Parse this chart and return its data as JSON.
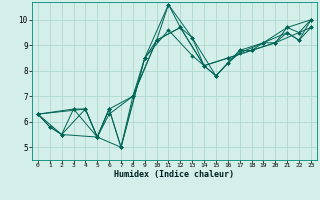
{
  "xlabel": "Humidex (Indice chaleur)",
  "xlim": [
    -0.5,
    23.5
  ],
  "ylim": [
    4.5,
    10.7
  ],
  "xticks": [
    0,
    1,
    2,
    3,
    4,
    5,
    6,
    7,
    8,
    9,
    10,
    11,
    12,
    13,
    14,
    15,
    16,
    17,
    18,
    19,
    20,
    21,
    22,
    23
  ],
  "yticks": [
    5,
    6,
    7,
    8,
    9,
    10
  ],
  "bg_color": "#d4eeea",
  "line_color": "#006655",
  "grid_color": "#aad4cc",
  "lines": [
    {
      "x": [
        0,
        1,
        2,
        3,
        4,
        5,
        6,
        7,
        8,
        9,
        10,
        11,
        12,
        13,
        14,
        15,
        16,
        17,
        18,
        19,
        20,
        21,
        22,
        23
      ],
      "y": [
        6.3,
        5.8,
        5.5,
        6.5,
        6.5,
        5.4,
        6.5,
        5.0,
        7.0,
        8.5,
        9.2,
        10.6,
        9.7,
        9.3,
        8.2,
        7.8,
        8.3,
        8.8,
        8.8,
        9.1,
        9.1,
        9.5,
        9.2,
        10.0
      ]
    },
    {
      "x": [
        0,
        2,
        4,
        5,
        6,
        8,
        10,
        12,
        14,
        16,
        18,
        20,
        22,
        23
      ],
      "y": [
        6.3,
        5.5,
        6.5,
        5.4,
        6.5,
        7.0,
        9.2,
        9.7,
        8.2,
        8.5,
        8.8,
        9.1,
        9.5,
        9.7
      ]
    },
    {
      "x": [
        0,
        3,
        5,
        6,
        8,
        10,
        12,
        14,
        16,
        18,
        20,
        21,
        23
      ],
      "y": [
        6.3,
        6.5,
        5.4,
        6.3,
        7.0,
        9.2,
        9.7,
        8.2,
        8.5,
        8.8,
        9.1,
        9.7,
        10.0
      ]
    },
    {
      "x": [
        0,
        4,
        5,
        6,
        7,
        9,
        11,
        13,
        15,
        17,
        19,
        21,
        22,
        23
      ],
      "y": [
        6.3,
        6.5,
        5.4,
        6.5,
        5.0,
        8.5,
        10.6,
        9.3,
        7.8,
        8.8,
        9.1,
        9.5,
        9.2,
        9.7
      ]
    },
    {
      "x": [
        0,
        1,
        2,
        5,
        7,
        9,
        11,
        13,
        15,
        16,
        17,
        19,
        21,
        22,
        23
      ],
      "y": [
        6.3,
        5.8,
        5.5,
        5.4,
        5.0,
        8.5,
        9.6,
        8.6,
        7.8,
        8.3,
        8.7,
        9.1,
        9.7,
        9.5,
        10.0
      ]
    }
  ]
}
